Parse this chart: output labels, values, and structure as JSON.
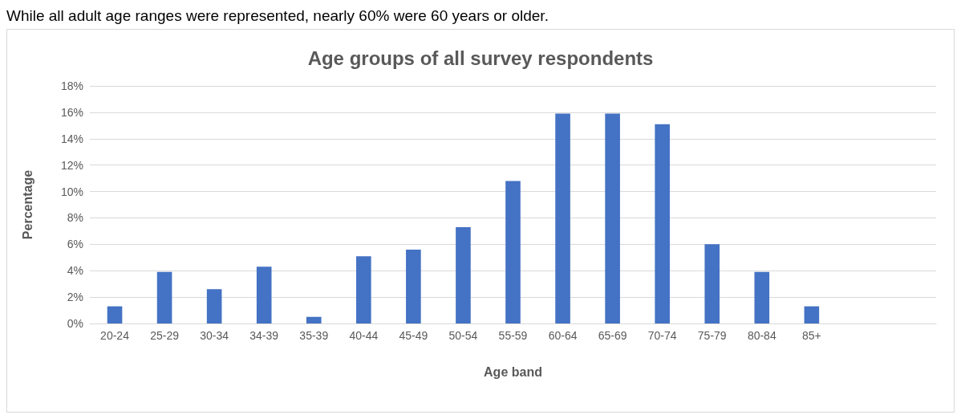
{
  "chart_data": {
    "type": "bar",
    "title": "Age groups of all survey respondents",
    "xlabel": "Age band",
    "ylabel": "Percentage",
    "annotations": [
      "While all adult age ranges were represented, nearly 60% were 60 years or older."
    ],
    "categories": [
      "20-24",
      "25-29",
      "30-34",
      "34-39",
      "35-39",
      "40-44",
      "45-49",
      "50-54",
      "55-59",
      "60-64",
      "65-69",
      "70-74",
      "75-79",
      "80-84",
      "85+",
      null,
      null
    ],
    "values": [
      1.3,
      3.9,
      2.6,
      4.3,
      0.5,
      5.1,
      5.6,
      7.3,
      10.8,
      15.9,
      15.9,
      15.1,
      6.0,
      3.9,
      1.3,
      null,
      null
    ],
    "color": "#4472c4",
    "ylim": [
      0,
      18
    ],
    "yticks": [
      {
        "value": 0,
        "label": "0%"
      },
      {
        "value": 2,
        "label": "2%"
      },
      {
        "value": 4,
        "label": "4%"
      },
      {
        "value": 6,
        "label": "6%"
      },
      {
        "value": 8,
        "label": "8%"
      },
      {
        "value": 10,
        "label": "10%"
      },
      {
        "value": 12,
        "label": "12%"
      },
      {
        "value": 14,
        "label": "14%"
      },
      {
        "value": 16,
        "label": "16%"
      },
      {
        "value": 18,
        "label": "18%"
      }
    ],
    "grid": "y"
  }
}
